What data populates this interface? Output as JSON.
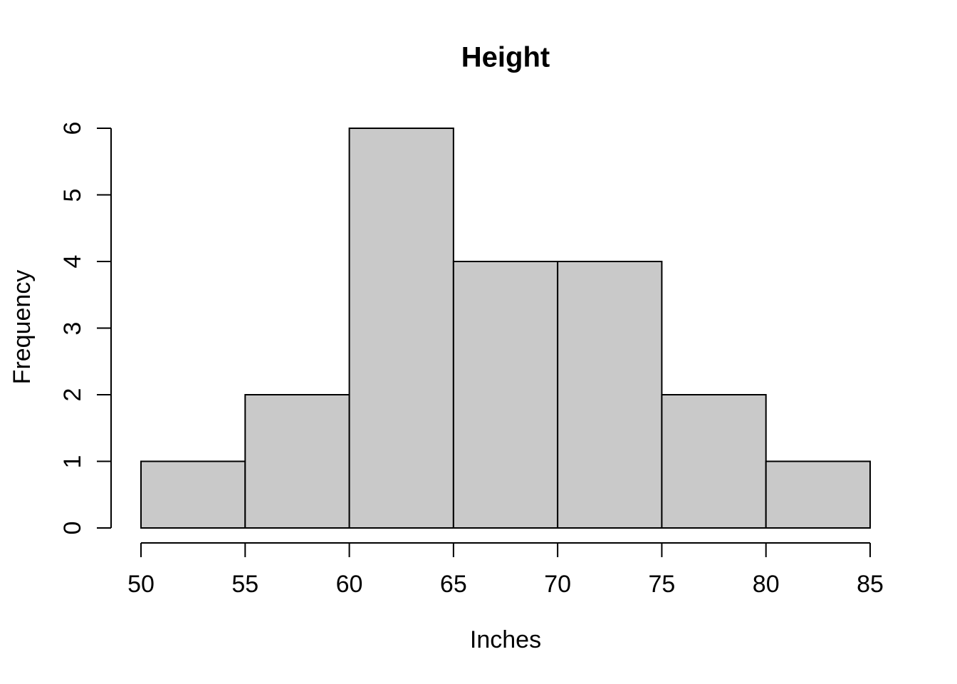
{
  "chart_data": {
    "type": "bar",
    "subtype": "histogram",
    "title": "Height",
    "xlabel": "Inches",
    "ylabel": "Frequency",
    "bin_edges": [
      50,
      55,
      60,
      65,
      70,
      75,
      80,
      85
    ],
    "counts": [
      1,
      2,
      6,
      4,
      4,
      2,
      1
    ],
    "x_ticks": [
      50,
      55,
      60,
      65,
      70,
      75,
      80,
      85
    ],
    "y_ticks": [
      0,
      1,
      2,
      3,
      4,
      5,
      6
    ],
    "xlim": [
      50,
      85
    ],
    "ylim": [
      0,
      6
    ],
    "grid": false,
    "legend": "none",
    "colors": {
      "bar_fill": "#C9C9C9",
      "bar_stroke": "#000000",
      "axis": "#000000",
      "text": "#000000",
      "background": "#FFFFFF"
    }
  }
}
